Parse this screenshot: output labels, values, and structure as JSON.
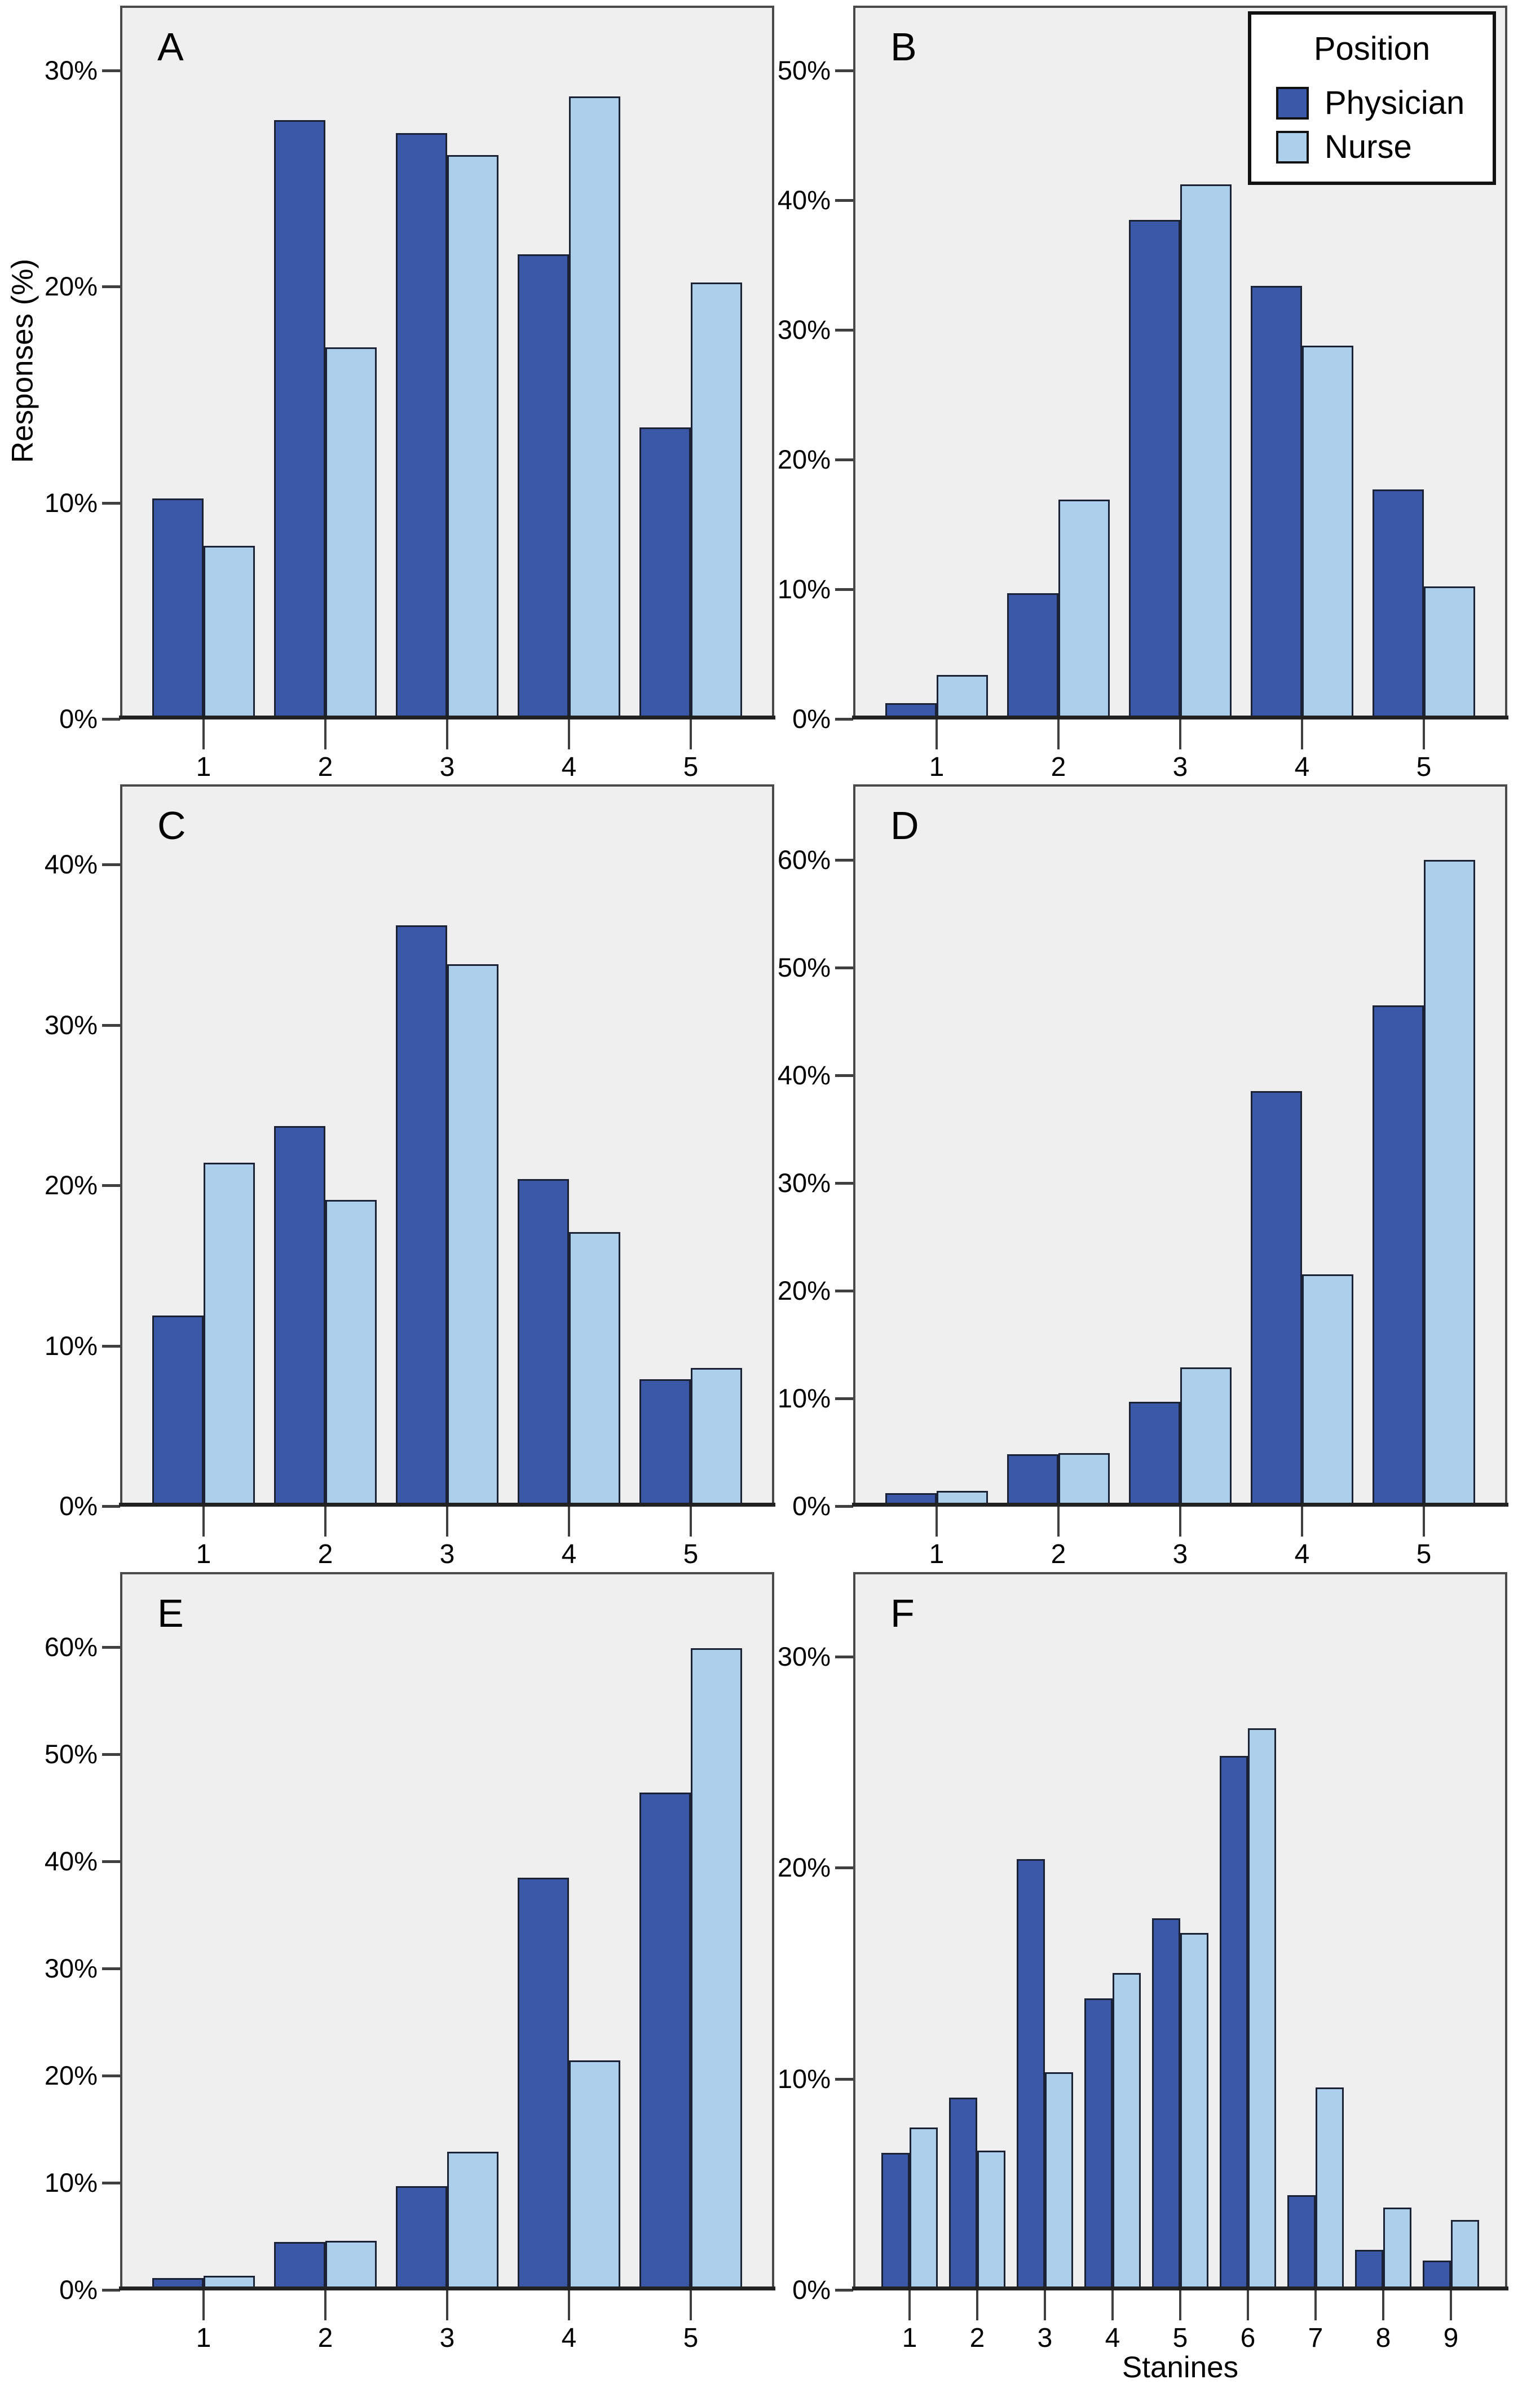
{
  "figure": {
    "y_axis_title": "Responses (%)",
    "x_axis_title": "Stanines"
  },
  "legend": {
    "title": "Position",
    "items": [
      {
        "label": "Physician",
        "color": "#3A58A7"
      },
      {
        "label": "Nurse",
        "color": "#ACD0EC"
      }
    ]
  },
  "colors": {
    "physician": "#3A58A7",
    "nurse": "#ACD0EC",
    "bar_border": "#1B2235",
    "plot_background": "#EFEFEF",
    "frame": "#4A4A4A",
    "baseline": "#222222",
    "tick": "#3F3F3F",
    "page_background": "#FFFFFF"
  },
  "chart_data": [
    {
      "type": "bar",
      "panel_label": "A",
      "categories": [
        "1",
        "2",
        "3",
        "4",
        "5"
      ],
      "series": [
        {
          "name": "Physician",
          "values": [
            10.2,
            27.7,
            27.1,
            21.5,
            13.5
          ]
        },
        {
          "name": "Nurse",
          "values": [
            8.0,
            17.2,
            26.1,
            28.8,
            20.2
          ]
        }
      ],
      "yticks": [
        0,
        10,
        20,
        30
      ],
      "ylim": [
        0,
        33
      ],
      "tick_suffix": "%",
      "legend_position": "none",
      "grid": false
    },
    {
      "type": "bar",
      "panel_label": "B",
      "categories": [
        "1",
        "2",
        "3",
        "4",
        "5"
      ],
      "series": [
        {
          "name": "Physician",
          "values": [
            1.2,
            9.7,
            38.5,
            33.4,
            17.7
          ]
        },
        {
          "name": "Nurse",
          "values": [
            3.4,
            16.9,
            41.2,
            28.8,
            10.2
          ]
        }
      ],
      "yticks": [
        0,
        10,
        20,
        30,
        40,
        50
      ],
      "ylim": [
        0,
        55
      ],
      "tick_suffix": "%",
      "legend_position": "top-right",
      "grid": false
    },
    {
      "type": "bar",
      "panel_label": "C",
      "categories": [
        "1",
        "2",
        "3",
        "4",
        "5"
      ],
      "series": [
        {
          "name": "Physician",
          "values": [
            11.9,
            23.7,
            36.2,
            20.4,
            7.9
          ]
        },
        {
          "name": "Nurse",
          "values": [
            21.4,
            19.1,
            33.8,
            17.1,
            8.6
          ]
        }
      ],
      "yticks": [
        0,
        10,
        20,
        30,
        40
      ],
      "ylim": [
        0,
        45
      ],
      "tick_suffix": "%",
      "legend_position": "none",
      "grid": false
    },
    {
      "type": "bar",
      "panel_label": "D",
      "categories": [
        "1",
        "2",
        "3",
        "4",
        "5"
      ],
      "series": [
        {
          "name": "Physician",
          "values": [
            1.2,
            4.8,
            9.7,
            38.5,
            46.5
          ]
        },
        {
          "name": "Nurse",
          "values": [
            1.4,
            4.9,
            12.9,
            21.5,
            60.0
          ]
        }
      ],
      "yticks": [
        0,
        10,
        20,
        30,
        40,
        50,
        60
      ],
      "ylim": [
        0,
        67
      ],
      "tick_suffix": "%",
      "legend_position": "none",
      "grid": false
    },
    {
      "type": "bar",
      "panel_label": "E",
      "categories": [
        "1",
        "2",
        "3",
        "4",
        "5"
      ],
      "series": [
        {
          "name": "Physician",
          "values": [
            1.1,
            4.5,
            9.7,
            38.5,
            46.4
          ]
        },
        {
          "name": "Nurse",
          "values": [
            1.3,
            4.6,
            12.9,
            21.4,
            59.9
          ]
        }
      ],
      "yticks": [
        0,
        10,
        20,
        30,
        40,
        50,
        60
      ],
      "ylim": [
        0,
        67
      ],
      "tick_suffix": "%",
      "legend_position": "none",
      "grid": false
    },
    {
      "type": "bar",
      "panel_label": "F",
      "categories": [
        "1",
        "2",
        "3",
        "4",
        "5",
        "6",
        "7",
        "8",
        "9"
      ],
      "series": [
        {
          "name": "Physician",
          "values": [
            6.5,
            9.1,
            20.4,
            13.8,
            17.6,
            25.3,
            4.5,
            1.9,
            1.4
          ]
        },
        {
          "name": "Nurse",
          "values": [
            7.7,
            6.6,
            10.3,
            15.0,
            16.9,
            26.6,
            9.6,
            3.9,
            3.3
          ]
        }
      ],
      "yticks": [
        0,
        10,
        20,
        30
      ],
      "ylim": [
        0,
        34
      ],
      "tick_suffix": "%",
      "legend_position": "none",
      "grid": false
    }
  ]
}
